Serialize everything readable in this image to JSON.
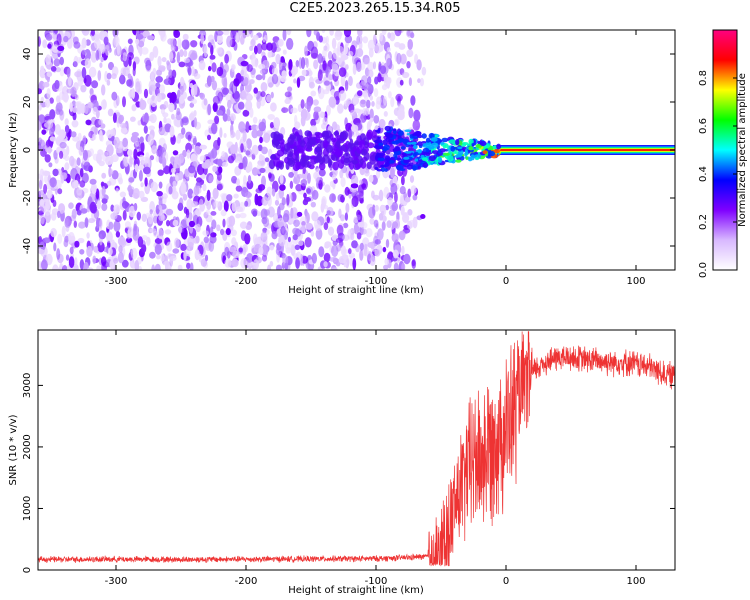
{
  "title": "C2E5.2023.265.15.34.R05",
  "chart_data": [
    {
      "type": "heatmap",
      "title": "C2E5.2023.265.15.34.R05",
      "xlabel": "Height of straight line (km)",
      "ylabel": "Frequency (Hz)",
      "xlim": [
        -360,
        130
      ],
      "ylim": [
        -50,
        50
      ],
      "x_ticks": [
        -300,
        -200,
        -100,
        0,
        100
      ],
      "y_ticks": [
        -40,
        -20,
        0,
        20,
        40
      ],
      "noise_region_x": [
        -360,
        -68
      ],
      "carrier_x": [
        -70,
        130
      ],
      "carrier_frequency": 0,
      "colorbar": {
        "label": "Normalized spectral amplitude",
        "range": [
          0,
          1
        ],
        "ticks": [
          0.0,
          0.2,
          0.4,
          0.6,
          0.8
        ],
        "colormap": [
          "#ffffff",
          "#d8b8ff",
          "#7f00ff",
          "#0000ff",
          "#00ffff",
          "#00ff00",
          "#ffff00",
          "#ff0000",
          "#ff0080"
        ]
      }
    },
    {
      "type": "line",
      "xlabel": "Height of straight line (km)",
      "ylabel": "SNR (10 * v/v)",
      "xlim": [
        -360,
        130
      ],
      "ylim": [
        0,
        3900
      ],
      "x_ticks": [
        -300,
        -200,
        -100,
        0,
        100
      ],
      "y_ticks": [
        0,
        1000,
        2000,
        3000
      ],
      "color": "#ee3333",
      "series": [
        {
          "x": [
            -360,
            -300,
            -250,
            -200,
            -150,
            -100,
            -80,
            -60,
            -50,
            -45,
            -40,
            -35,
            -30,
            -25,
            -20,
            -15,
            -10,
            -5,
            0,
            5,
            10,
            15,
            20,
            25,
            30,
            40,
            50,
            60,
            70,
            80,
            90,
            100,
            110,
            120,
            130
          ],
          "y": [
            170,
            175,
            170,
            175,
            180,
            185,
            200,
            220,
            300,
            600,
            1000,
            1300,
            1600,
            1800,
            1800,
            1900,
            2100,
            2200,
            2300,
            2500,
            2800,
            3050,
            3200,
            3300,
            3380,
            3450,
            3450,
            3420,
            3400,
            3380,
            3380,
            3350,
            3300,
            3200,
            3150
          ]
        }
      ]
    }
  ]
}
